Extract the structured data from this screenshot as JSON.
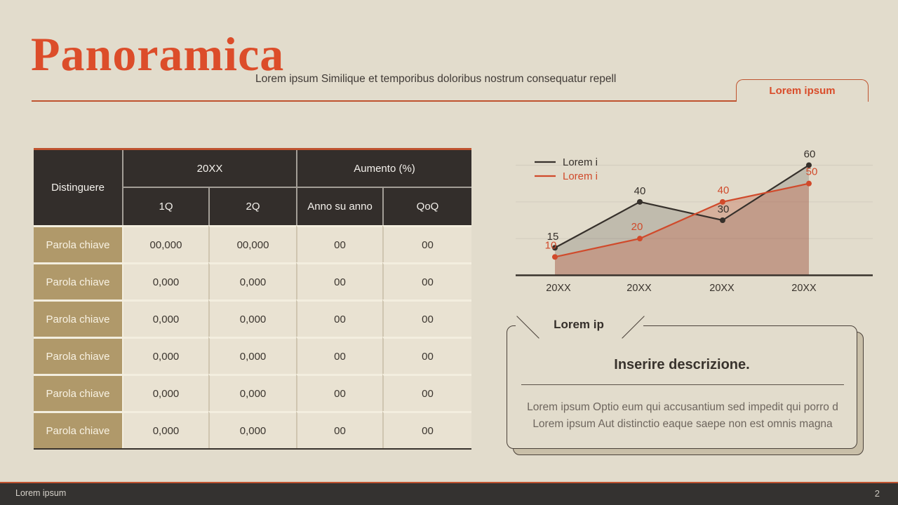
{
  "slide": {
    "title": "Panoramica",
    "subtitle": "Lorem ipsum Similique et temporibus doloribus nostrum consequatur repell",
    "tab_label": "Lorem ipsum"
  },
  "table": {
    "row_header": "Distinguere",
    "group_headers": [
      "20XX",
      "Aumento (%)"
    ],
    "sub_headers": [
      "1Q",
      "2Q",
      "Anno su anno",
      "QoQ"
    ],
    "rows": [
      {
        "label": "Parola chiave",
        "values": [
          "00,000",
          "00,000",
          "00",
          "00"
        ]
      },
      {
        "label": "Parola chiave",
        "values": [
          "0,000",
          "0,000",
          "00",
          "00"
        ]
      },
      {
        "label": "Parola chiave",
        "values": [
          "0,000",
          "0,000",
          "00",
          "00"
        ]
      },
      {
        "label": "Parola chiave",
        "values": [
          "0,000",
          "0,000",
          "00",
          "00"
        ]
      },
      {
        "label": "Parola chiave",
        "values": [
          "0,000",
          "0,000",
          "00",
          "00"
        ]
      },
      {
        "label": "Parola chiave",
        "values": [
          "0,000",
          "0,000",
          "00",
          "00"
        ]
      }
    ]
  },
  "chart_data": {
    "type": "area",
    "title": "",
    "xlabel": "",
    "ylabel": "",
    "categories": [
      "20XX",
      "20XX",
      "20XX",
      "20XX"
    ],
    "series": [
      {
        "name": "Lorem i",
        "values": [
          15,
          40,
          30,
          60
        ],
        "color": "#36302b",
        "fill": "rgba(62,54,48,0.20)"
      },
      {
        "name": "Lorem i",
        "values": [
          10,
          20,
          40,
          50
        ],
        "color": "#d04a2b",
        "fill": "rgba(198,110,84,0.40)"
      }
    ],
    "ylim": [
      0,
      70
    ],
    "gridlines": [
      20,
      40,
      60
    ],
    "grid": true,
    "legend_position": "top-left",
    "data_labels": true
  },
  "card": {
    "tag": "Lorem ip",
    "title": "Inserire descrizione.",
    "body_lines": [
      "Lorem ipsum Optio eum qui accusantium sed impedit qui porro d",
      "Lorem ipsum Aut distinctio eaque saepe non est omnis magna"
    ]
  },
  "footer": {
    "left": "Lorem ipsum",
    "page": "2"
  },
  "colors": {
    "background": "#e2dccc",
    "accent": "#bf532f",
    "title": "#dc4d2a",
    "table_header_bg": "#332e2b",
    "row_label_bg": "#b0996a",
    "cell_bg": "#e9e2d2",
    "footer_bg": "#343230",
    "series_dark": "#36302b",
    "series_red": "#d04a2b"
  }
}
